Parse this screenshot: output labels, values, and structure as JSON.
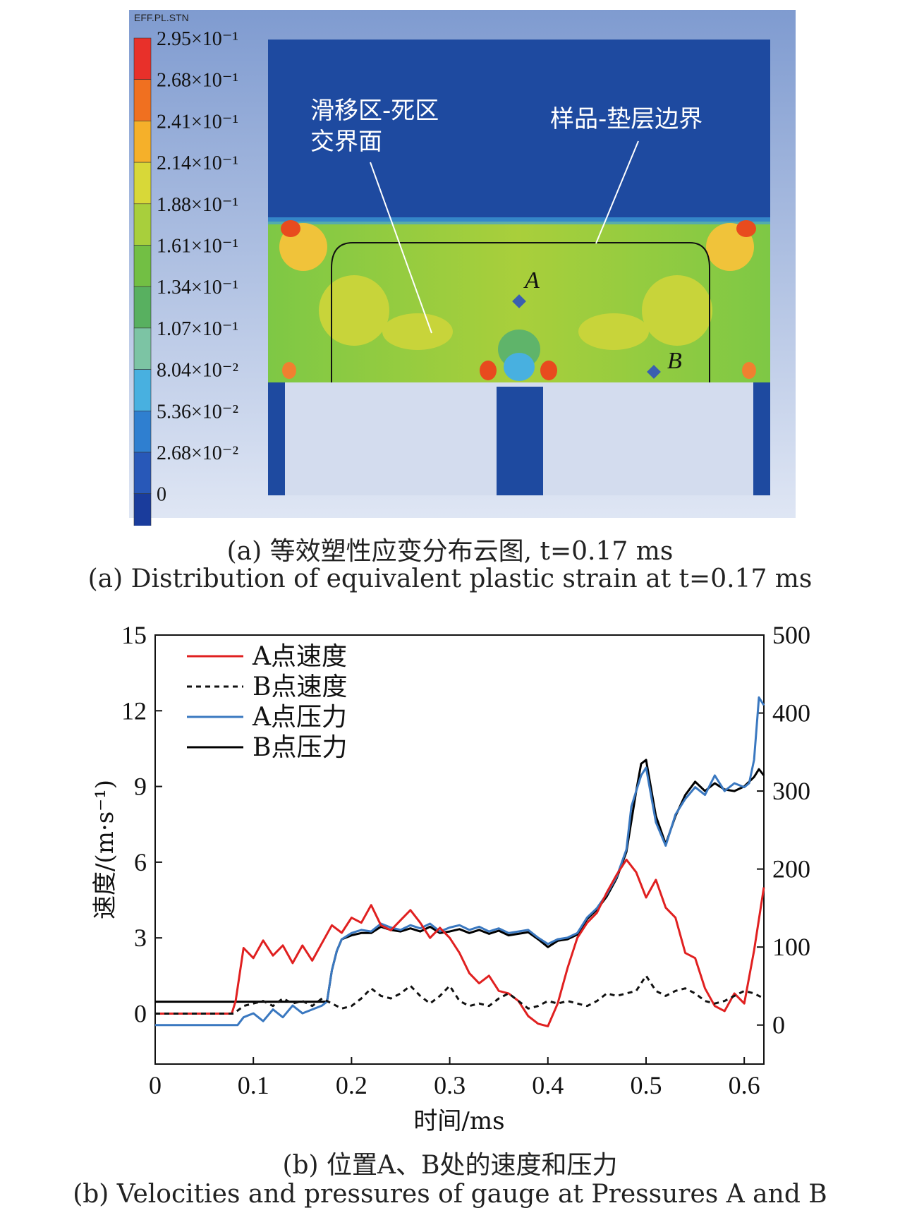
{
  "figure_a": {
    "colorbar_title": "EFF.PL.STN",
    "colorbar_labels": [
      "2.95×10⁻¹",
      "2.68×10⁻¹",
      "2.41×10⁻¹",
      "2.14×10⁻¹",
      "1.88×10⁻¹",
      "1.61×10⁻¹",
      "1.34×10⁻¹",
      "1.07×10⁻¹",
      "8.04×10⁻²",
      "5.36×10⁻²",
      "2.68×10⁻²",
      "0"
    ],
    "colorbar_colors": [
      "#e8302a",
      "#f07020",
      "#f5b02a",
      "#d8d838",
      "#a8cf3c",
      "#72bf44",
      "#58b060",
      "#7cc4a4",
      "#48b0e0",
      "#2f7fd0",
      "#2858b8",
      "#1a3c9c"
    ],
    "annotation_left_line1": "滑移区-死区",
    "annotation_left_line2": "交界面",
    "annotation_right": "样品-垫层边界",
    "point_a": "A",
    "point_b": "B",
    "caption_cn": "(a) 等效塑性应变分布云图, t=0.17 ms",
    "caption_en": "(a) Distribution of equivalent plastic strain at t=0.17 ms"
  },
  "chart_data": {
    "type": "line",
    "xlabel": "时间/ms",
    "ylabel": "速度/(m·s⁻¹)",
    "xlim": [
      0,
      0.62
    ],
    "ylim_left": [
      -2,
      15
    ],
    "ylim_right": [
      -50,
      500
    ],
    "x_ticks": [
      "0",
      "0.1",
      "0.2",
      "0.3",
      "0.4",
      "0.5",
      "0.6"
    ],
    "y_ticks_left": [
      "0",
      "3",
      "6",
      "9",
      "12",
      "15"
    ],
    "y_ticks_right": [
      "0",
      "100",
      "200",
      "300",
      "400",
      "500"
    ],
    "legend": [
      "A点速度",
      "B点速度",
      "A点压力",
      "B点压力"
    ],
    "series": [
      {
        "name": "A点速度",
        "axis": "left",
        "color": "#e02020",
        "dash": "solid",
        "x": [
          0,
          0.078,
          0.082,
          0.09,
          0.1,
          0.11,
          0.12,
          0.13,
          0.14,
          0.15,
          0.16,
          0.17,
          0.18,
          0.19,
          0.2,
          0.21,
          0.22,
          0.23,
          0.24,
          0.25,
          0.26,
          0.27,
          0.28,
          0.29,
          0.3,
          0.31,
          0.32,
          0.33,
          0.34,
          0.35,
          0.36,
          0.37,
          0.38,
          0.39,
          0.4,
          0.41,
          0.42,
          0.43,
          0.44,
          0.45,
          0.46,
          0.47,
          0.48,
          0.49,
          0.5,
          0.51,
          0.52,
          0.53,
          0.54,
          0.55,
          0.56,
          0.57,
          0.58,
          0.59,
          0.6,
          0.61,
          0.62
        ],
        "y": [
          0,
          0,
          0.5,
          2.6,
          2.2,
          2.9,
          2.3,
          2.7,
          2.0,
          2.7,
          2.1,
          2.8,
          3.5,
          3.2,
          3.8,
          3.6,
          4.3,
          3.5,
          3.3,
          3.7,
          4.1,
          3.6,
          3.0,
          3.4,
          3.0,
          2.4,
          1.6,
          1.2,
          1.5,
          0.9,
          0.8,
          0.5,
          -0.1,
          -0.4,
          -0.5,
          0.4,
          1.8,
          3.0,
          3.6,
          4.0,
          4.8,
          5.5,
          6.1,
          5.6,
          4.6,
          5.3,
          4.2,
          3.8,
          2.4,
          2.2,
          1.0,
          0.3,
          0.1,
          0.8,
          0.4,
          2.5,
          5.0
        ]
      },
      {
        "name": "B点速度",
        "axis": "left",
        "color": "#111111",
        "dash": "dotted",
        "x": [
          0,
          0.08,
          0.09,
          0.1,
          0.11,
          0.12,
          0.13,
          0.14,
          0.15,
          0.16,
          0.17,
          0.18,
          0.19,
          0.2,
          0.21,
          0.22,
          0.23,
          0.24,
          0.25,
          0.26,
          0.27,
          0.28,
          0.29,
          0.3,
          0.31,
          0.32,
          0.33,
          0.34,
          0.35,
          0.36,
          0.37,
          0.38,
          0.39,
          0.4,
          0.41,
          0.42,
          0.43,
          0.44,
          0.45,
          0.46,
          0.47,
          0.48,
          0.49,
          0.5,
          0.51,
          0.52,
          0.53,
          0.54,
          0.55,
          0.56,
          0.57,
          0.58,
          0.59,
          0.6,
          0.61,
          0.62
        ],
        "y": [
          0,
          0,
          0.3,
          0.4,
          0.5,
          0.3,
          0.6,
          0.4,
          0.5,
          0.3,
          0.6,
          0.4,
          0.2,
          0.3,
          0.6,
          1.0,
          0.7,
          0.6,
          0.8,
          1.1,
          0.7,
          0.4,
          0.7,
          1.1,
          0.5,
          0.3,
          0.4,
          0.3,
          0.6,
          0.8,
          0.5,
          0.2,
          0.3,
          0.5,
          0.4,
          0.5,
          0.4,
          0.3,
          0.5,
          0.8,
          0.7,
          0.8,
          0.9,
          1.5,
          0.9,
          0.7,
          0.9,
          1.0,
          0.8,
          0.5,
          0.4,
          0.5,
          0.7,
          0.9,
          0.8,
          0.6
        ]
      },
      {
        "name": "A点压力",
        "axis": "right",
        "color": "#3a78c0",
        "dash": "solid",
        "x": [
          0,
          0.084,
          0.09,
          0.1,
          0.11,
          0.12,
          0.13,
          0.14,
          0.15,
          0.16,
          0.17,
          0.175,
          0.18,
          0.185,
          0.19,
          0.2,
          0.21,
          0.22,
          0.23,
          0.24,
          0.25,
          0.26,
          0.27,
          0.28,
          0.29,
          0.3,
          0.31,
          0.32,
          0.33,
          0.34,
          0.35,
          0.36,
          0.37,
          0.38,
          0.39,
          0.4,
          0.41,
          0.42,
          0.43,
          0.44,
          0.45,
          0.46,
          0.47,
          0.48,
          0.485,
          0.49,
          0.495,
          0.5,
          0.51,
          0.52,
          0.53,
          0.54,
          0.55,
          0.56,
          0.57,
          0.58,
          0.59,
          0.6,
          0.605,
          0.61,
          0.615,
          0.62
        ],
        "y": [
          0,
          0,
          10,
          15,
          5,
          20,
          10,
          25,
          15,
          20,
          25,
          30,
          70,
          95,
          110,
          118,
          122,
          120,
          130,
          125,
          122,
          128,
          124,
          130,
          120,
          125,
          128,
          122,
          126,
          120,
          124,
          118,
          120,
          122,
          112,
          104,
          110,
          112,
          118,
          138,
          150,
          168,
          190,
          225,
          280,
          300,
          320,
          330,
          260,
          230,
          270,
          290,
          305,
          295,
          320,
          300,
          310,
          305,
          310,
          340,
          420,
          410
        ]
      },
      {
        "name": "B点压力",
        "axis": "right",
        "color": "#000000",
        "dash": "solid",
        "x": [
          0,
          0.175,
          0.18,
          0.185,
          0.19,
          0.2,
          0.21,
          0.22,
          0.23,
          0.24,
          0.25,
          0.26,
          0.27,
          0.28,
          0.29,
          0.3,
          0.31,
          0.32,
          0.33,
          0.34,
          0.35,
          0.36,
          0.37,
          0.38,
          0.39,
          0.4,
          0.41,
          0.42,
          0.43,
          0.44,
          0.45,
          0.46,
          0.47,
          0.48,
          0.49,
          0.495,
          0.5,
          0.51,
          0.52,
          0.53,
          0.54,
          0.55,
          0.56,
          0.57,
          0.58,
          0.59,
          0.6,
          0.61,
          0.615,
          0.62
        ],
        "y": [
          30,
          30,
          70,
          95,
          110,
          115,
          118,
          118,
          126,
          122,
          120,
          124,
          120,
          126,
          118,
          120,
          123,
          118,
          122,
          117,
          121,
          115,
          117,
          119,
          110,
          100,
          108,
          110,
          116,
          136,
          148,
          165,
          188,
          222,
          300,
          335,
          340,
          268,
          232,
          268,
          295,
          312,
          300,
          310,
          302,
          300,
          306,
          318,
          328,
          320
        ]
      }
    ]
  },
  "caption_b_cn": "(b) 位置A、B处的速度和压力",
  "caption_b_en": "(b) Velocities and pressures of gauge at Pressures A and B"
}
